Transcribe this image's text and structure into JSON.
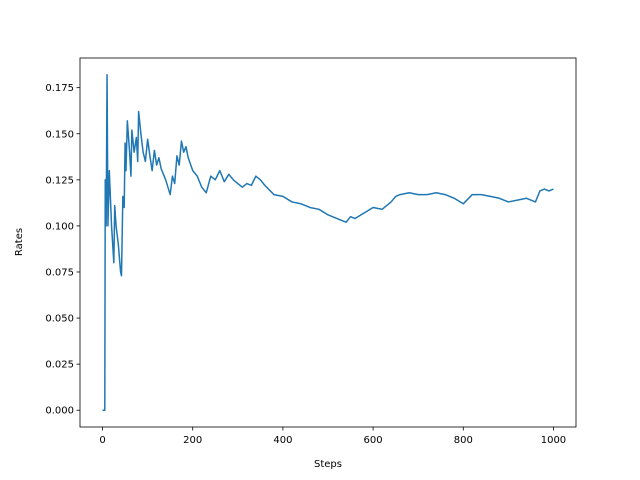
{
  "chart_data": {
    "type": "line",
    "x_label": "Steps",
    "y_label": "Rates",
    "x": [
      0,
      5,
      6,
      8,
      10,
      12,
      15,
      20,
      25,
      27,
      30,
      35,
      40,
      42,
      45,
      48,
      50,
      52,
      55,
      60,
      63,
      65,
      70,
      75,
      78,
      80,
      85,
      90,
      95,
      100,
      105,
      110,
      115,
      120,
      125,
      130,
      140,
      150,
      155,
      160,
      165,
      170,
      175,
      180,
      185,
      190,
      200,
      210,
      220,
      230,
      240,
      250,
      260,
      270,
      280,
      290,
      300,
      310,
      320,
      330,
      340,
      350,
      360,
      380,
      400,
      420,
      440,
      460,
      480,
      500,
      520,
      540,
      550,
      560,
      580,
      600,
      620,
      640,
      650,
      660,
      680,
      700,
      720,
      740,
      760,
      780,
      800,
      820,
      840,
      860,
      880,
      900,
      920,
      940,
      960,
      970,
      980,
      990,
      1000
    ],
    "series": [
      {
        "name": "Rates",
        "color": "#1f77b4",
        "values": [
          0,
          0,
          0.125,
          0.1,
          0.182,
          0.1,
          0.13,
          0.1,
          0.08,
          0.111,
          0.1,
          0.09,
          0.075,
          0.073,
          0.116,
          0.11,
          0.145,
          0.13,
          0.157,
          0.14,
          0.127,
          0.152,
          0.14,
          0.148,
          0.135,
          0.162,
          0.15,
          0.14,
          0.135,
          0.147,
          0.138,
          0.13,
          0.141,
          0.133,
          0.137,
          0.131,
          0.125,
          0.117,
          0.127,
          0.123,
          0.138,
          0.133,
          0.146,
          0.14,
          0.143,
          0.137,
          0.13,
          0.127,
          0.121,
          0.118,
          0.127,
          0.125,
          0.13,
          0.124,
          0.128,
          0.125,
          0.123,
          0.121,
          0.123,
          0.122,
          0.127,
          0.125,
          0.122,
          0.117,
          0.116,
          0.113,
          0.112,
          0.11,
          0.109,
          0.106,
          0.104,
          0.102,
          0.105,
          0.104,
          0.107,
          0.11,
          0.109,
          0.113,
          0.116,
          0.117,
          0.118,
          0.117,
          0.117,
          0.118,
          0.117,
          0.115,
          0.112,
          0.117,
          0.117,
          0.116,
          0.115,
          0.113,
          0.114,
          0.115,
          0.113,
          0.119,
          0.12,
          0.119,
          0.12
        ]
      }
    ],
    "xlim": [
      -50,
      1050
    ],
    "ylim": [
      -0.0091,
      0.1911
    ],
    "xticks": [
      0,
      200,
      400,
      600,
      800,
      1000
    ],
    "yticks": [
      {
        "value": 0,
        "label": "0.000"
      },
      {
        "value": 0.025,
        "label": "0.025"
      },
      {
        "value": 0.05,
        "label": "0.050"
      },
      {
        "value": 0.075,
        "label": "0.075"
      },
      {
        "value": 0.1,
        "label": "0.100"
      },
      {
        "value": 0.125,
        "label": "0.125"
      },
      {
        "value": 0.15,
        "label": "0.150"
      },
      {
        "value": 0.175,
        "label": "0.175"
      }
    ]
  }
}
